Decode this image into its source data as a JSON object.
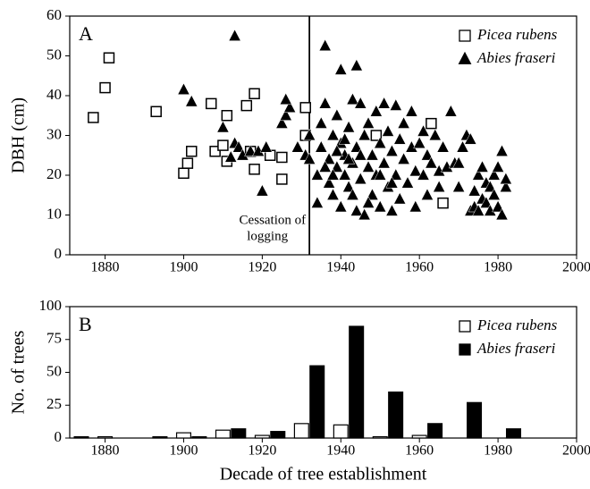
{
  "chart_data": [
    {
      "type": "scatter",
      "panel_label": "A",
      "ylabel": "DBH (cm)",
      "xlim": [
        1871,
        2000
      ],
      "ylim": [
        0,
        60
      ],
      "xticks": [
        1880,
        1900,
        1920,
        1940,
        1960,
        1980,
        2000
      ],
      "yticks": [
        0,
        10,
        20,
        30,
        40,
        50,
        60
      ],
      "legend": "upper right",
      "vline": {
        "x": 1932,
        "label": [
          "Cessation of",
          "logging"
        ]
      },
      "series": [
        {
          "name": "Picea rubens",
          "marker": "square",
          "color": "#ffffff",
          "x": [
            1877,
            1880,
            1881,
            1893,
            1900,
            1901,
            1902,
            1907,
            1908,
            1910,
            1911,
            1911,
            1916,
            1917,
            1918,
            1918,
            1922,
            1925,
            1925,
            1931,
            1931,
            1949,
            1963,
            1966
          ],
          "values": [
            34.5,
            42,
            49.5,
            36,
            20.5,
            23,
            26,
            38,
            26,
            27.5,
            23.5,
            35,
            37.5,
            26,
            40.5,
            21.5,
            25,
            19,
            24.5,
            37,
            30,
            30,
            33,
            13
          ]
        },
        {
          "name": "Abies fraseri",
          "marker": "triangle",
          "color": "#000000",
          "x": [
            1900,
            1902,
            1910,
            1913,
            1912,
            1913,
            1914,
            1915,
            1917,
            1919,
            1920,
            1921,
            1925,
            1926,
            1927,
            1926,
            1929,
            1931,
            1932,
            1932,
            1934,
            1934,
            1935,
            1935,
            1936,
            1936,
            1937,
            1937,
            1938,
            1938,
            1939,
            1939,
            1940,
            1940,
            1940,
            1941,
            1941,
            1942,
            1942,
            1943,
            1943,
            1944,
            1944,
            1944,
            1945,
            1945,
            1946,
            1946,
            1947,
            1947,
            1948,
            1948,
            1949,
            1949,
            1950,
            1950,
            1951,
            1951,
            1952,
            1952,
            1953,
            1953,
            1954,
            1954,
            1955,
            1955,
            1956,
            1956,
            1957,
            1958,
            1958,
            1959,
            1959,
            1960,
            1961,
            1961,
            1962,
            1962,
            1963,
            1964,
            1965,
            1965,
            1966,
            1967,
            1968,
            1969,
            1970,
            1970,
            1971,
            1972,
            1973,
            1973,
            1974,
            1974,
            1975,
            1975,
            1976,
            1976,
            1977,
            1977,
            1978,
            1978,
            1979,
            1979,
            1980,
            1980,
            1981,
            1981,
            1982,
            1982,
            1939,
            1941,
            1943,
            1936,
            1945,
            1947,
            1938,
            1942,
            1950,
            1953
          ],
          "values": [
            41.5,
            38.5,
            32,
            55,
            24.5,
            28,
            27,
            25,
            26,
            26,
            16,
            27,
            33,
            35,
            37,
            39,
            27,
            25,
            24,
            30,
            13,
            20,
            27,
            33,
            52.5,
            38,
            24,
            18,
            30,
            15,
            22,
            35,
            46.5,
            28,
            12,
            20,
            25,
            32,
            17,
            39,
            23,
            47.5,
            27,
            11,
            38,
            19,
            30,
            10,
            22,
            33,
            25,
            15,
            36,
            20,
            28,
            12,
            38,
            23,
            17,
            31,
            26,
            11,
            37.5,
            20,
            29,
            14,
            24,
            33,
            18,
            36,
            27,
            21,
            12,
            28,
            31,
            20,
            25,
            15,
            23,
            30,
            21,
            17,
            27,
            22,
            36,
            23,
            17,
            23,
            27,
            30,
            29,
            11,
            16,
            12,
            20,
            11,
            14,
            22,
            18,
            13,
            17,
            11,
            15,
            20,
            22,
            12,
            26,
            10,
            17,
            19,
            26,
            29,
            15,
            22,
            25,
            13,
            20,
            24,
            20,
            18
          ]
        }
      ]
    },
    {
      "type": "bar",
      "panel_label": "B",
      "ylabel": "No. of trees",
      "xlabel": "Decade of tree establishment",
      "xlim": [
        1871,
        2000
      ],
      "ylim": [
        0,
        100
      ],
      "xticks": [
        1880,
        1900,
        1920,
        1940,
        1960,
        1980,
        2000
      ],
      "yticks": [
        0,
        25,
        50,
        75,
        100
      ],
      "legend": "upper right",
      "x": [
        1870,
        1880,
        1890,
        1900,
        1910,
        1920,
        1930,
        1940,
        1950,
        1960,
        1970,
        1980
      ],
      "series": [
        {
          "name": "Picea rubens",
          "color": "#ffffff",
          "values": [
            0,
            1,
            0,
            4,
            6,
            2,
            11,
            10,
            1,
            2,
            0,
            0
          ]
        },
        {
          "name": "Abies fraseri",
          "color": "#000000",
          "values": [
            1,
            0,
            1,
            1,
            7,
            5,
            55,
            85,
            35,
            11,
            27,
            7
          ]
        }
      ]
    }
  ]
}
